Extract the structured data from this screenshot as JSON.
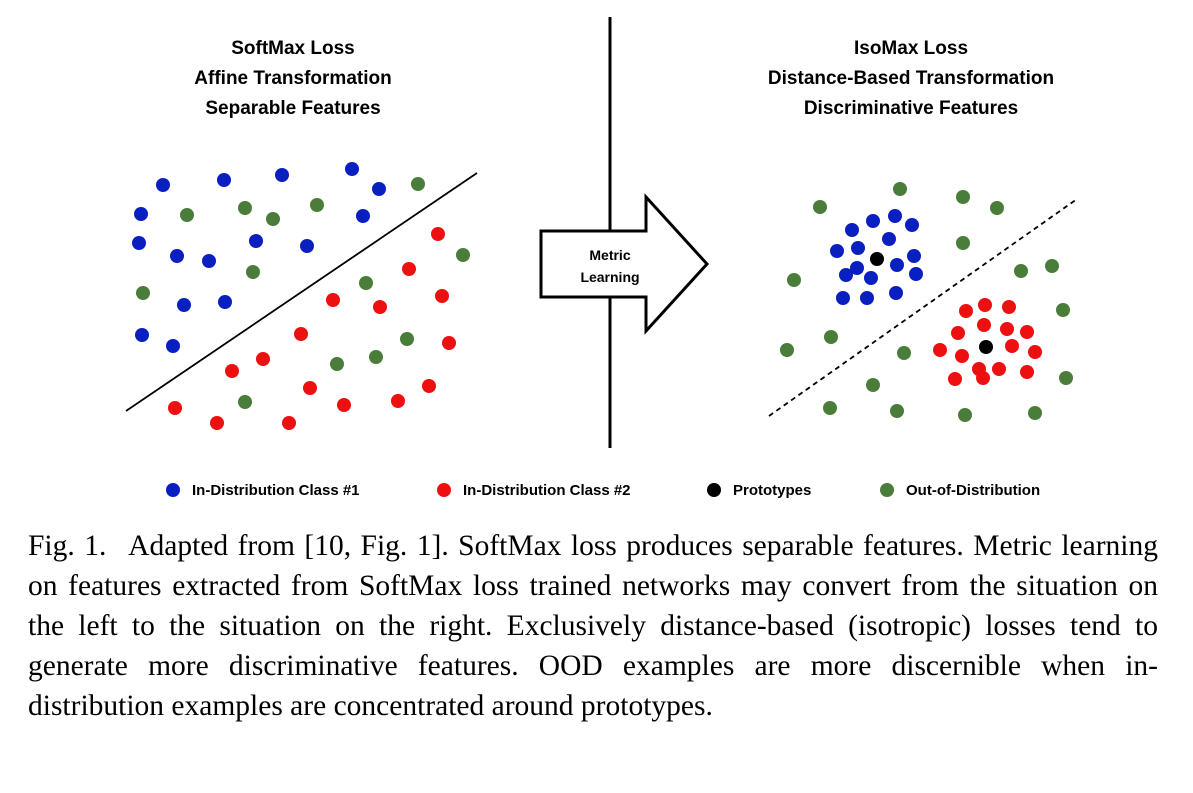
{
  "left_panel": {
    "title_lines": [
      "SoftMax Loss",
      "Affine Transformation",
      "Separable Features"
    ]
  },
  "right_panel": {
    "title_lines": [
      "IsoMax Loss",
      "Distance-Based Transformation",
      "Discriminative Features"
    ]
  },
  "arrow": {
    "label_lines": [
      "Metric",
      "Learning"
    ]
  },
  "legend": [
    {
      "label": "In-Distribution Class #1",
      "color": "#0a1fbf"
    },
    {
      "label": "In-Distribution Class #2",
      "color": "#ee1010"
    },
    {
      "label": "Prototypes",
      "color": "#000000"
    },
    {
      "label": "Out-of-Distribution",
      "color": "#4a7d3a"
    }
  ],
  "caption": {
    "label": "Fig. 1.",
    "text": "Adapted from [10, Fig. 1]. SoftMax loss produces separable features. Metric learning on features extracted from SoftMax loss trained networks may convert from the situation on the left to the situation on the right. Exclusively distance-based (isotropic) losses tend to generate more discriminative features. OOD examples are more discernible when in-distribution examples are concentrated around prototypes."
  }
}
